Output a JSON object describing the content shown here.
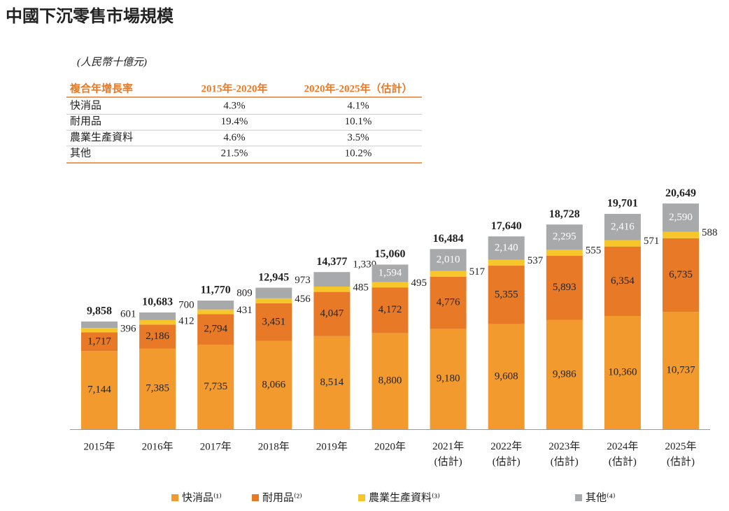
{
  "chart_data": {
    "type": "stacked_bar",
    "title": "中國下沉零售市場規模",
    "subtitle": "(人民幣十億元)",
    "categories": [
      "2015年",
      "2016年",
      "2017年",
      "2018年",
      "2019年",
      "2020年",
      "2021年\n(估計)",
      "2022年\n(估計)",
      "2023年\n(估計)",
      "2024年\n(估計)",
      "2025年\n(估計)"
    ],
    "series": [
      {
        "name": "快消品⁽¹⁾",
        "color": "#f39a2e",
        "values": [
          7144,
          7385,
          7735,
          8066,
          8514,
          8800,
          9180,
          9608,
          9986,
          10360,
          10737
        ],
        "value_labels": [
          "7,144",
          "7,385",
          "7,735",
          "8,066",
          "8,514",
          "8,800",
          "9,180",
          "9,608",
          "9,986",
          "10,360",
          "10,737"
        ]
      },
      {
        "name": "耐用品⁽²⁾",
        "color": "#e87a27",
        "values": [
          1717,
          2186,
          2794,
          3451,
          4047,
          4172,
          4776,
          5355,
          5893,
          6354,
          6735
        ],
        "value_labels": [
          "1,717",
          "2,186",
          "2,794",
          "3,451",
          "4,047",
          "4,172",
          "4,776",
          "5,355",
          "5,893",
          "6,354",
          "6,735"
        ]
      },
      {
        "name": "農業生產資料⁽³⁾",
        "color": "#f7c62b",
        "values": [
          396,
          412,
          431,
          456,
          485,
          495,
          517,
          537,
          555,
          571,
          588
        ]
      },
      {
        "name": "其他⁽⁴⁾",
        "color": "#a8a9ab",
        "values": [
          601,
          700,
          809,
          973,
          1330,
          1594,
          2010,
          2140,
          2295,
          2416,
          2590
        ],
        "value_labels": [
          "601",
          "700",
          "809",
          "973",
          "1,330",
          "1,594",
          "2,010",
          "2,140",
          "2,295",
          "2,416",
          "2,590"
        ]
      }
    ],
    "totals": {
      "values": [
        9858,
        10683,
        11770,
        12945,
        14377,
        15060,
        16484,
        17640,
        18728,
        19701,
        20649
      ],
      "value_labels": [
        "9,858",
        "10,683",
        "11,770",
        "12,945",
        "14,377",
        "15,060",
        "16,484",
        "17,640",
        "18,728",
        "19,701",
        "20,649"
      ]
    },
    "ylim": [
      0,
      22000
    ]
  },
  "table": {
    "header": [
      "複合年增長率",
      "2015年-2020年",
      "2020年-2025年（估計）"
    ],
    "rows": [
      [
        "快消品",
        "4.3%",
        "4.1%"
      ],
      [
        "耐用品",
        "19.4%",
        "10.1%"
      ],
      [
        "農業生產資料",
        "4.6%",
        "3.5%"
      ],
      [
        "其他",
        "21.5%",
        "10.2%"
      ]
    ]
  }
}
